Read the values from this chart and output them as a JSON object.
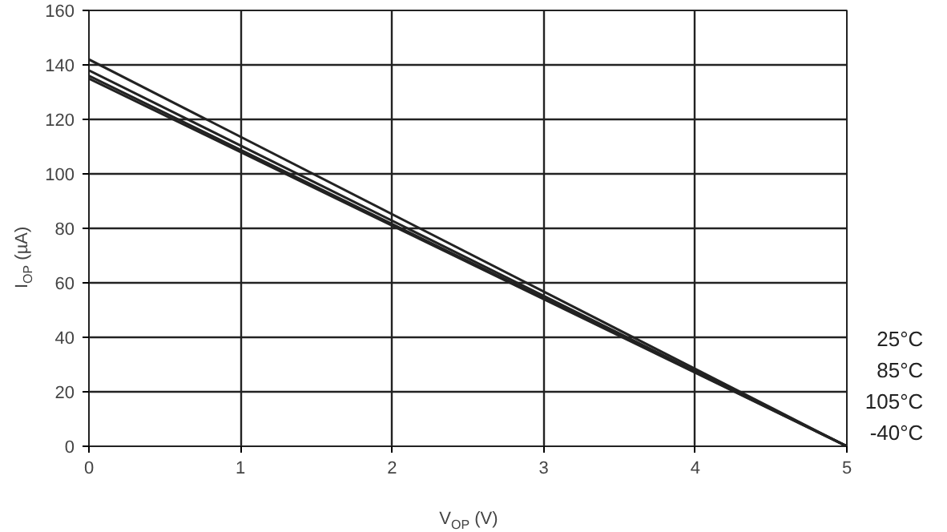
{
  "chart_data": {
    "type": "line",
    "xlabel": "V$_{OP}$ (V)",
    "ylabel": "I$_{OP}$ (µA)",
    "x": [
      0,
      5
    ],
    "series": [
      {
        "name": "25°C",
        "color": "#222222",
        "values": [
          142,
          0
        ]
      },
      {
        "name": "85°C",
        "color": "#222222",
        "values": [
          138,
          0
        ]
      },
      {
        "name": "105°C",
        "color": "#222222",
        "values": [
          136,
          0
        ]
      },
      {
        "name": "-40°C",
        "color": "#222222",
        "values": [
          135,
          0
        ]
      }
    ],
    "xlim": [
      0,
      5
    ],
    "ylim": [
      0,
      160
    ],
    "xticks": [
      0,
      1,
      2,
      3,
      4,
      5
    ],
    "yticks": [
      0,
      20,
      40,
      60,
      80,
      100,
      120,
      140,
      160
    ],
    "grid": true,
    "marker": "none",
    "line_style": "solid"
  }
}
